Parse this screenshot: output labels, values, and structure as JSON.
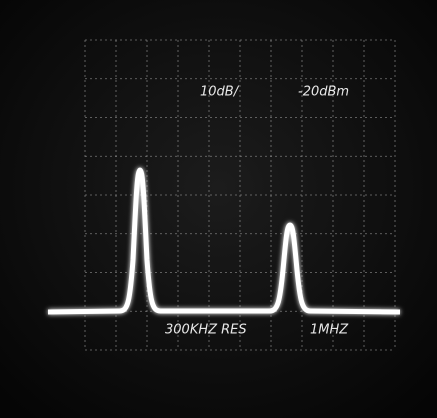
{
  "display": {
    "scale": "10dB/",
    "reference": "-20dBm",
    "resolution": "300KHZ RES",
    "span": "1MHZ"
  }
}
